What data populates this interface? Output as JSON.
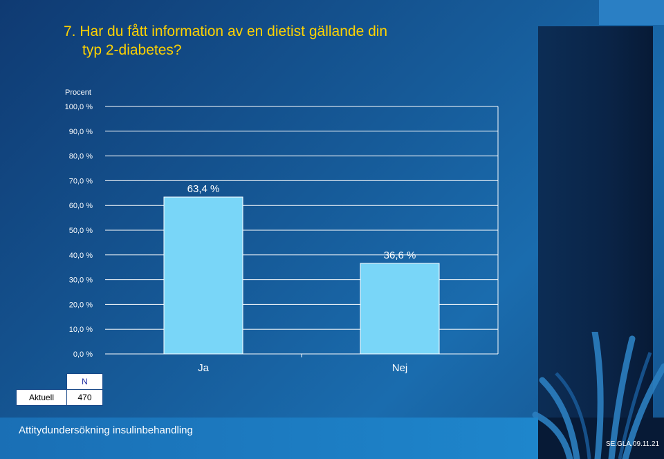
{
  "slide": {
    "title_line1": "7. Har du fått information av en dietist gällande din",
    "title_line2": "typ 2-diabetes?",
    "footer": "Attitydundersökning insulinbehandling",
    "code": "SE.GLA.09.11.21",
    "colors": {
      "title": "#ffd200",
      "bar": "#79d6f8",
      "background": "#165a98"
    }
  },
  "n_table": {
    "header": "N",
    "rows": [
      {
        "label": "Aktuell",
        "value": "470"
      }
    ]
  },
  "chart_data": {
    "type": "bar",
    "title": "",
    "ylabel": "Procent",
    "xlabel": "",
    "categories": [
      "Ja",
      "Nej"
    ],
    "values": [
      63.4,
      36.6
    ],
    "value_labels": [
      "63,4 %",
      "36,6 %"
    ],
    "ylim": [
      0,
      100
    ],
    "yticks": [
      0,
      10,
      20,
      30,
      40,
      50,
      60,
      70,
      80,
      90,
      100
    ],
    "ytick_labels": [
      "0,0 %",
      "10,0 %",
      "20,0 %",
      "30,0 %",
      "40,0 %",
      "50,0 %",
      "60,0 %",
      "70,0 %",
      "80,0 %",
      "90,0 %",
      "100,0 %"
    ],
    "grid": true,
    "legend": "none"
  }
}
